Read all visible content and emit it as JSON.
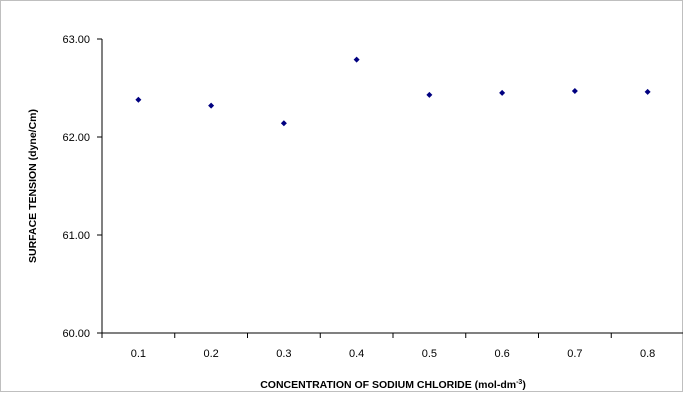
{
  "chart_data": {
    "type": "scatter",
    "title": "",
    "xlabel": "CONCENTRATION OF SODIUM CHLORIDE (mol-dm-3)",
    "xlabel_parts": {
      "main": "CONCENTRATION OF SODIUM CHLORIDE (mol-dm",
      "superscript": "-3",
      "close": ")"
    },
    "ylabel": "SURFACE TENSION (dyne/Cm)",
    "x_categories": [
      "0.1",
      "0.2",
      "0.3",
      "0.4",
      "0.5",
      "0.6",
      "0.7",
      "0.8"
    ],
    "ylim": [
      60.0,
      63.0
    ],
    "y_ticks": [
      "60.00",
      "61.00",
      "62.00",
      "63.00"
    ],
    "series": [
      {
        "x": [
          0.1,
          0.2,
          0.3,
          0.4,
          0.5,
          0.6,
          0.7,
          0.8
        ],
        "y": [
          62.38,
          62.32,
          62.14,
          62.79,
          62.43,
          62.45,
          62.47,
          62.46
        ],
        "marker": "diamond",
        "color": "#000080"
      }
    ],
    "grid": false,
    "legend": "none"
  }
}
